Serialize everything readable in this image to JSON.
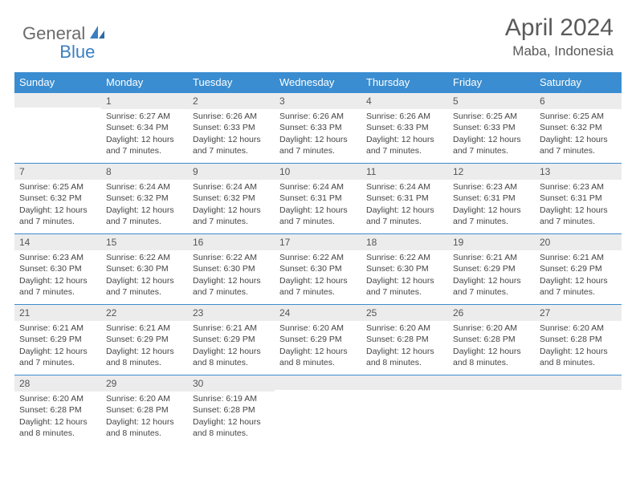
{
  "logo": {
    "word1": "General",
    "word2": "Blue",
    "color1": "#6b6b6b",
    "color2": "#3a7fc2"
  },
  "title": "April 2024",
  "location": "Maba, Indonesia",
  "header_bg": "#3a8dd0",
  "dayrow_bg": "#ececec",
  "border_color": "#3a8dd0",
  "weekdays": [
    "Sunday",
    "Monday",
    "Tuesday",
    "Wednesday",
    "Thursday",
    "Friday",
    "Saturday"
  ],
  "weeks": [
    [
      null,
      {
        "n": "1",
        "sr": "6:27 AM",
        "ss": "6:34 PM",
        "dl": "12 hours and 7 minutes."
      },
      {
        "n": "2",
        "sr": "6:26 AM",
        "ss": "6:33 PM",
        "dl": "12 hours and 7 minutes."
      },
      {
        "n": "3",
        "sr": "6:26 AM",
        "ss": "6:33 PM",
        "dl": "12 hours and 7 minutes."
      },
      {
        "n": "4",
        "sr": "6:26 AM",
        "ss": "6:33 PM",
        "dl": "12 hours and 7 minutes."
      },
      {
        "n": "5",
        "sr": "6:25 AM",
        "ss": "6:33 PM",
        "dl": "12 hours and 7 minutes."
      },
      {
        "n": "6",
        "sr": "6:25 AM",
        "ss": "6:32 PM",
        "dl": "12 hours and 7 minutes."
      }
    ],
    [
      {
        "n": "7",
        "sr": "6:25 AM",
        "ss": "6:32 PM",
        "dl": "12 hours and 7 minutes."
      },
      {
        "n": "8",
        "sr": "6:24 AM",
        "ss": "6:32 PM",
        "dl": "12 hours and 7 minutes."
      },
      {
        "n": "9",
        "sr": "6:24 AM",
        "ss": "6:32 PM",
        "dl": "12 hours and 7 minutes."
      },
      {
        "n": "10",
        "sr": "6:24 AM",
        "ss": "6:31 PM",
        "dl": "12 hours and 7 minutes."
      },
      {
        "n": "11",
        "sr": "6:24 AM",
        "ss": "6:31 PM",
        "dl": "12 hours and 7 minutes."
      },
      {
        "n": "12",
        "sr": "6:23 AM",
        "ss": "6:31 PM",
        "dl": "12 hours and 7 minutes."
      },
      {
        "n": "13",
        "sr": "6:23 AM",
        "ss": "6:31 PM",
        "dl": "12 hours and 7 minutes."
      }
    ],
    [
      {
        "n": "14",
        "sr": "6:23 AM",
        "ss": "6:30 PM",
        "dl": "12 hours and 7 minutes."
      },
      {
        "n": "15",
        "sr": "6:22 AM",
        "ss": "6:30 PM",
        "dl": "12 hours and 7 minutes."
      },
      {
        "n": "16",
        "sr": "6:22 AM",
        "ss": "6:30 PM",
        "dl": "12 hours and 7 minutes."
      },
      {
        "n": "17",
        "sr": "6:22 AM",
        "ss": "6:30 PM",
        "dl": "12 hours and 7 minutes."
      },
      {
        "n": "18",
        "sr": "6:22 AM",
        "ss": "6:30 PM",
        "dl": "12 hours and 7 minutes."
      },
      {
        "n": "19",
        "sr": "6:21 AM",
        "ss": "6:29 PM",
        "dl": "12 hours and 7 minutes."
      },
      {
        "n": "20",
        "sr": "6:21 AM",
        "ss": "6:29 PM",
        "dl": "12 hours and 7 minutes."
      }
    ],
    [
      {
        "n": "21",
        "sr": "6:21 AM",
        "ss": "6:29 PM",
        "dl": "12 hours and 7 minutes."
      },
      {
        "n": "22",
        "sr": "6:21 AM",
        "ss": "6:29 PM",
        "dl": "12 hours and 8 minutes."
      },
      {
        "n": "23",
        "sr": "6:21 AM",
        "ss": "6:29 PM",
        "dl": "12 hours and 8 minutes."
      },
      {
        "n": "24",
        "sr": "6:20 AM",
        "ss": "6:29 PM",
        "dl": "12 hours and 8 minutes."
      },
      {
        "n": "25",
        "sr": "6:20 AM",
        "ss": "6:28 PM",
        "dl": "12 hours and 8 minutes."
      },
      {
        "n": "26",
        "sr": "6:20 AM",
        "ss": "6:28 PM",
        "dl": "12 hours and 8 minutes."
      },
      {
        "n": "27",
        "sr": "6:20 AM",
        "ss": "6:28 PM",
        "dl": "12 hours and 8 minutes."
      }
    ],
    [
      {
        "n": "28",
        "sr": "6:20 AM",
        "ss": "6:28 PM",
        "dl": "12 hours and 8 minutes."
      },
      {
        "n": "29",
        "sr": "6:20 AM",
        "ss": "6:28 PM",
        "dl": "12 hours and 8 minutes."
      },
      {
        "n": "30",
        "sr": "6:19 AM",
        "ss": "6:28 PM",
        "dl": "12 hours and 8 minutes."
      },
      null,
      null,
      null,
      null
    ]
  ],
  "labels": {
    "sunrise": "Sunrise:",
    "sunset": "Sunset:",
    "daylight": "Daylight:"
  }
}
